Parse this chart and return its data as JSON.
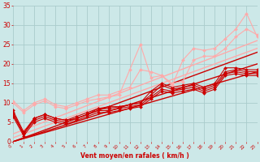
{
  "title": "",
  "xlabel": "Vent moyen/en rafales ( km/h )",
  "ylabel": "",
  "bg_color": "#cce8e8",
  "grid_color": "#aacccc",
  "x_min": 0,
  "x_max": 23,
  "y_min": 0,
  "y_max": 35,
  "xlabel_color": "#cc0000",
  "tick_color": "#cc0000",
  "yticks": [
    0,
    5,
    10,
    15,
    20,
    25,
    30,
    35
  ],
  "series": [
    {
      "x": [
        0,
        1,
        2,
        3,
        4,
        5,
        6,
        7,
        8,
        9,
        10,
        11,
        12,
        13,
        14,
        15,
        16,
        17,
        18,
        19,
        20,
        21,
        22,
        23
      ],
      "y": [
        8,
        2.5,
        6,
        7,
        6,
        5.5,
        6,
        7,
        8.5,
        9,
        9,
        9.5,
        10,
        13,
        15,
        14,
        14.5,
        15,
        14,
        15,
        19,
        19,
        18.5,
        18.5
      ],
      "color": "#cc0000",
      "lw": 0.8,
      "marker": "D",
      "ms": 2.0
    },
    {
      "x": [
        0,
        1,
        2,
        3,
        4,
        5,
        6,
        7,
        8,
        9,
        10,
        11,
        12,
        13,
        14,
        15,
        16,
        17,
        18,
        19,
        20,
        21,
        22,
        23
      ],
      "y": [
        7.5,
        2,
        6,
        7,
        6,
        5.5,
        6.5,
        7.5,
        8.5,
        8.5,
        9,
        9.5,
        10,
        12,
        14.5,
        13.5,
        14,
        14.5,
        13.5,
        14.5,
        18,
        18.5,
        18,
        18
      ],
      "color": "#cc0000",
      "lw": 0.8,
      "marker": "D",
      "ms": 2.0
    },
    {
      "x": [
        0,
        1,
        2,
        3,
        4,
        5,
        6,
        7,
        8,
        9,
        10,
        11,
        12,
        13,
        14,
        15,
        16,
        17,
        18,
        19,
        20,
        21,
        22,
        23
      ],
      "y": [
        7,
        2,
        5.5,
        6.5,
        5.5,
        5,
        6,
        7,
        8,
        8,
        8.5,
        9,
        9.5,
        11.5,
        13.5,
        13,
        13.5,
        14,
        13,
        14,
        17.5,
        18,
        17.5,
        17.5
      ],
      "color": "#cc0000",
      "lw": 0.8,
      "marker": "D",
      "ms": 2.0
    },
    {
      "x": [
        0,
        1,
        2,
        3,
        4,
        5,
        6,
        7,
        8,
        9,
        10,
        11,
        12,
        13,
        14,
        15,
        16,
        17,
        18,
        19,
        20,
        21,
        22,
        23
      ],
      "y": [
        6.5,
        1.5,
        5,
        6,
        5,
        4.5,
        5.5,
        6.5,
        7.5,
        7.5,
        8,
        8.5,
        9,
        11,
        13,
        12.5,
        13,
        13.5,
        12.5,
        13.5,
        17,
        17.5,
        17,
        17
      ],
      "color": "#cc0000",
      "lw": 0.8,
      "marker": "D",
      "ms": 2.0
    },
    {
      "x": [
        0,
        1,
        2,
        3,
        4,
        5,
        6,
        7,
        8,
        9,
        10,
        11,
        12,
        13,
        14,
        15,
        16,
        17,
        18,
        19,
        20,
        21,
        22,
        23
      ],
      "y": [
        10.5,
        8,
        10,
        11,
        9.5,
        9,
        10,
        11,
        12,
        12,
        13,
        14,
        18.5,
        18,
        17,
        15,
        15.5,
        21,
        22,
        22,
        24,
        27,
        29,
        27.5
      ],
      "color": "#ffaaaa",
      "lw": 0.8,
      "marker": "D",
      "ms": 2.0
    },
    {
      "x": [
        0,
        1,
        2,
        3,
        4,
        5,
        6,
        7,
        8,
        9,
        10,
        11,
        12,
        13,
        14,
        15,
        16,
        17,
        18,
        19,
        20,
        21,
        22,
        23
      ],
      "y": [
        10,
        7.5,
        9.5,
        10.5,
        9,
        8.5,
        9.5,
        10.5,
        11,
        11.5,
        12,
        18.5,
        25,
        16.5,
        17,
        14.5,
        21,
        24,
        23.5,
        24,
        26.5,
        29,
        33,
        27
      ],
      "color": "#ffaaaa",
      "lw": 0.8,
      "marker": "D",
      "ms": 2.0
    },
    {
      "x": [
        0,
        23
      ],
      "y": [
        0,
        23
      ],
      "color": "#cc0000",
      "lw": 1.0,
      "marker": null,
      "ms": 0
    },
    {
      "x": [
        0,
        23
      ],
      "y": [
        0,
        20
      ],
      "color": "#cc0000",
      "lw": 1.0,
      "marker": null,
      "ms": 0
    },
    {
      "x": [
        0,
        23
      ],
      "y": [
        0,
        18
      ],
      "color": "#cc0000",
      "lw": 1.0,
      "marker": null,
      "ms": 0
    },
    {
      "x": [
        0,
        23
      ],
      "y": [
        2,
        26
      ],
      "color": "#ffaaaa",
      "lw": 1.0,
      "marker": null,
      "ms": 0
    },
    {
      "x": [
        0,
        23
      ],
      "y": [
        1,
        24
      ],
      "color": "#ffaaaa",
      "lw": 1.0,
      "marker": null,
      "ms": 0
    }
  ]
}
